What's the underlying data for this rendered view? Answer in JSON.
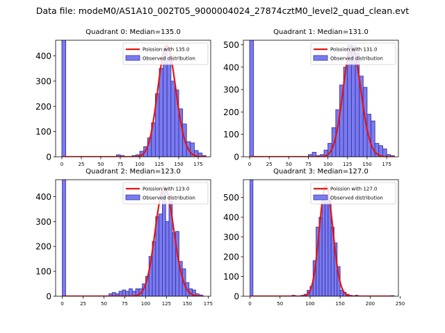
{
  "suptitle": "Data file: modeM0/AS1A10_002T05_9000004024_27874cztM0_level2_quad_clean.evt",
  "colors": {
    "bar_fill": "#7b7bf0",
    "bar_edge": "#3535a8",
    "poisson": "#e8130f",
    "axis": "#000000"
  },
  "chart_data": [
    {
      "type": "bar",
      "title": "Quadrant 0: Median=135.0",
      "median": 135.0,
      "xlim": [
        -8,
        191
      ],
      "ylim": [
        0,
        462
      ],
      "xticks": [
        0,
        25,
        50,
        75,
        100,
        125,
        150,
        175
      ],
      "yticks": [
        0,
        100,
        200,
        300,
        400
      ],
      "legend": {
        "placement": "top-right",
        "entries": [
          "Poission with 135.0",
          "Observed distribution"
        ]
      },
      "bin_width": 5,
      "bins": [
        {
          "x": 0,
          "y": 462
        },
        {
          "x": 70,
          "y": 8
        },
        {
          "x": 75,
          "y": 5
        },
        {
          "x": 90,
          "y": 5
        },
        {
          "x": 95,
          "y": 8
        },
        {
          "x": 100,
          "y": 22
        },
        {
          "x": 105,
          "y": 40
        },
        {
          "x": 110,
          "y": 75
        },
        {
          "x": 115,
          "y": 135
        },
        {
          "x": 120,
          "y": 250
        },
        {
          "x": 125,
          "y": 350
        },
        {
          "x": 130,
          "y": 430
        },
        {
          "x": 135,
          "y": 390
        },
        {
          "x": 140,
          "y": 300
        },
        {
          "x": 145,
          "y": 265
        },
        {
          "x": 150,
          "y": 190
        },
        {
          "x": 155,
          "y": 130
        },
        {
          "x": 160,
          "y": 60
        },
        {
          "x": 165,
          "y": 55
        },
        {
          "x": 170,
          "y": 25
        },
        {
          "x": 175,
          "y": 15
        },
        {
          "x": 180,
          "y": 5
        }
      ],
      "poisson": {
        "mean": 135.0,
        "peak": 440,
        "start": 0,
        "end": 185
      }
    },
    {
      "type": "bar",
      "title": "Quadrant 1: Median=131.0",
      "median": 131.0,
      "xlim": [
        -8,
        190
      ],
      "ylim": [
        0,
        520
      ],
      "xticks": [
        0,
        25,
        50,
        75,
        100,
        125,
        150,
        175
      ],
      "yticks": [
        0,
        100,
        200,
        300,
        400,
        500
      ],
      "legend": {
        "placement": "top-right",
        "entries": [
          "Poission with 131.0",
          "Observed distribution"
        ]
      },
      "bin_width": 5,
      "bins": [
        {
          "x": 0,
          "y": 520
        },
        {
          "x": 75,
          "y": 10
        },
        {
          "x": 80,
          "y": 20
        },
        {
          "x": 85,
          "y": 5
        },
        {
          "x": 90,
          "y": 10
        },
        {
          "x": 95,
          "y": 30
        },
        {
          "x": 100,
          "y": 60
        },
        {
          "x": 105,
          "y": 130
        },
        {
          "x": 110,
          "y": 210
        },
        {
          "x": 115,
          "y": 320
        },
        {
          "x": 120,
          "y": 400
        },
        {
          "x": 125,
          "y": 500
        },
        {
          "x": 130,
          "y": 495
        },
        {
          "x": 135,
          "y": 460
        },
        {
          "x": 140,
          "y": 360
        },
        {
          "x": 145,
          "y": 310
        },
        {
          "x": 150,
          "y": 190
        },
        {
          "x": 155,
          "y": 160
        },
        {
          "x": 160,
          "y": 60
        },
        {
          "x": 165,
          "y": 50
        },
        {
          "x": 170,
          "y": 35
        },
        {
          "x": 175,
          "y": 10
        },
        {
          "x": 180,
          "y": 5
        }
      ],
      "poisson": {
        "mean": 131.0,
        "peak": 490,
        "start": 0,
        "end": 185
      }
    },
    {
      "type": "bar",
      "title": "Quadrant 2: Median=123.0",
      "median": 123.0,
      "xlim": [
        -8,
        178
      ],
      "ylim": [
        0,
        468
      ],
      "xticks": [
        0,
        25,
        50,
        75,
        100,
        125,
        150,
        175
      ],
      "yticks": [
        0,
        100,
        200,
        300,
        400
      ],
      "legend": {
        "placement": "top-right",
        "entries": [
          "Poission with 123.0",
          "Observed distribution"
        ]
      },
      "bin_width": 4,
      "bins": [
        {
          "x": 0,
          "y": 468
        },
        {
          "x": 56,
          "y": 10
        },
        {
          "x": 60,
          "y": 15
        },
        {
          "x": 64,
          "y": 10
        },
        {
          "x": 68,
          "y": 20
        },
        {
          "x": 72,
          "y": 25
        },
        {
          "x": 76,
          "y": 20
        },
        {
          "x": 80,
          "y": 30
        },
        {
          "x": 84,
          "y": 20
        },
        {
          "x": 88,
          "y": 30
        },
        {
          "x": 92,
          "y": 30
        },
        {
          "x": 96,
          "y": 50
        },
        {
          "x": 100,
          "y": 80
        },
        {
          "x": 104,
          "y": 160
        },
        {
          "x": 108,
          "y": 220
        },
        {
          "x": 112,
          "y": 320
        },
        {
          "x": 116,
          "y": 330
        },
        {
          "x": 120,
          "y": 440
        },
        {
          "x": 124,
          "y": 300
        },
        {
          "x": 128,
          "y": 380
        },
        {
          "x": 132,
          "y": 255
        },
        {
          "x": 136,
          "y": 260
        },
        {
          "x": 140,
          "y": 140
        },
        {
          "x": 144,
          "y": 110
        },
        {
          "x": 148,
          "y": 55
        },
        {
          "x": 152,
          "y": 30
        },
        {
          "x": 156,
          "y": 25
        },
        {
          "x": 160,
          "y": 10
        },
        {
          "x": 164,
          "y": 5
        }
      ],
      "poisson": {
        "mean": 123.0,
        "peak": 440,
        "start": 0,
        "end": 170
      }
    },
    {
      "type": "bar",
      "title": "Quadrant 3: Median=127.0",
      "median": 127.0,
      "xlim": [
        -11,
        247
      ],
      "ylim": [
        0,
        590
      ],
      "xticks": [
        0,
        50,
        100,
        150,
        200,
        250
      ],
      "yticks": [
        0,
        100,
        200,
        300,
        400,
        500
      ],
      "legend": {
        "placement": "top-right",
        "entries": [
          "Poission with 127.0",
          "Observed distribution"
        ]
      },
      "bin_width": 5,
      "bins": [
        {
          "x": 0,
          "y": 590
        },
        {
          "x": 70,
          "y": 5
        },
        {
          "x": 85,
          "y": 5
        },
        {
          "x": 90,
          "y": 10
        },
        {
          "x": 95,
          "y": 30
        },
        {
          "x": 100,
          "y": 50
        },
        {
          "x": 105,
          "y": 180
        },
        {
          "x": 110,
          "y": 350
        },
        {
          "x": 115,
          "y": 400
        },
        {
          "x": 120,
          "y": 510
        },
        {
          "x": 125,
          "y": 480
        },
        {
          "x": 130,
          "y": 500
        },
        {
          "x": 135,
          "y": 350
        },
        {
          "x": 140,
          "y": 270
        },
        {
          "x": 145,
          "y": 150
        },
        {
          "x": 150,
          "y": 30
        },
        {
          "x": 155,
          "y": 20
        },
        {
          "x": 160,
          "y": 10
        },
        {
          "x": 165,
          "y": 5
        },
        {
          "x": 175,
          "y": 5
        },
        {
          "x": 235,
          "y": 3
        }
      ],
      "poisson": {
        "mean": 127.0,
        "peak": 560,
        "start": 0,
        "end": 235
      }
    }
  ]
}
